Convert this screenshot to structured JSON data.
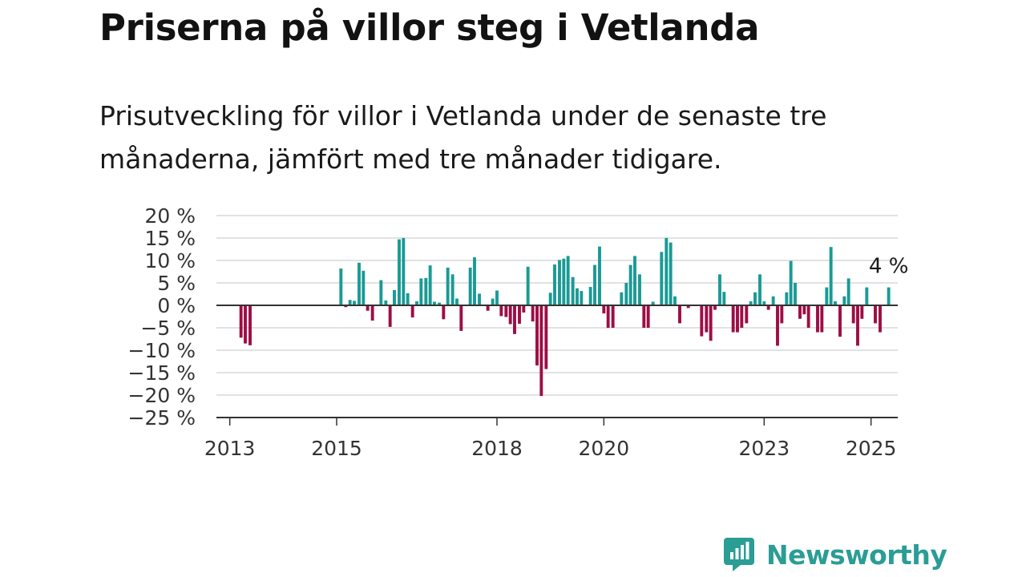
{
  "header": {
    "title": "Priserna på villor steg i Vetlanda",
    "subtitle": "Prisutveckling för villor i Vetlanda under de senaste tre månaderna, jämfört med tre månader tidigare."
  },
  "brand": {
    "name": "Newsworthy",
    "color": "#2a9d95",
    "icon": "newsworthy-logo-icon"
  },
  "chart_data": {
    "type": "bar",
    "title": "",
    "xlabel": "",
    "ylabel": "",
    "ylim": [
      -25,
      20
    ],
    "yticks": [
      20,
      15,
      10,
      5,
      0,
      -5,
      -10,
      -15,
      -20,
      -25
    ],
    "ytick_labels": [
      "20 %",
      "15 %",
      "10 %",
      "5 %",
      "0 %",
      "−5 %",
      "−10 %",
      "−15 %",
      "−20 %",
      "−25 %"
    ],
    "xlim": [
      2012.75,
      2025.5
    ],
    "xticks": [
      {
        "label": "2013",
        "value": 2013.0
      },
      {
        "label": "2015",
        "value": 2015.0
      },
      {
        "label": "2018",
        "value": 2018.0
      },
      {
        "label": "2020",
        "value": 2020.0
      },
      {
        "label": "2023",
        "value": 2023.0
      },
      {
        "label": "2025",
        "value": 2025.0
      }
    ],
    "grid": true,
    "positive_color": "#1a9a95",
    "negative_color": "#9e0d45",
    "annotation": {
      "text": "4 %",
      "x": 2025.33,
      "y": 4
    },
    "values": [
      [
        2013.21,
        -7.2
      ],
      [
        2013.29,
        -8.5
      ],
      [
        2013.38,
        -8.9
      ],
      [
        2015.08,
        8.2
      ],
      [
        2015.17,
        -0.4
      ],
      [
        2015.25,
        1.2
      ],
      [
        2015.33,
        1.0
      ],
      [
        2015.42,
        9.5
      ],
      [
        2015.5,
        7.7
      ],
      [
        2015.58,
        -1.2
      ],
      [
        2015.67,
        -3.4
      ],
      [
        2015.83,
        5.6
      ],
      [
        2015.92,
        1.1
      ],
      [
        2016.0,
        -4.8
      ],
      [
        2016.08,
        3.4
      ],
      [
        2016.17,
        14.7
      ],
      [
        2016.25,
        15.0
      ],
      [
        2016.33,
        2.7
      ],
      [
        2016.42,
        -2.7
      ],
      [
        2016.5,
        0.9
      ],
      [
        2016.58,
        6.0
      ],
      [
        2016.67,
        6.1
      ],
      [
        2016.75,
        8.9
      ],
      [
        2016.83,
        0.8
      ],
      [
        2016.92,
        0.6
      ],
      [
        2017.0,
        -3.1
      ],
      [
        2017.08,
        8.4
      ],
      [
        2017.17,
        6.9
      ],
      [
        2017.25,
        1.5
      ],
      [
        2017.33,
        -5.7
      ],
      [
        2017.5,
        8.4
      ],
      [
        2017.58,
        10.7
      ],
      [
        2017.67,
        2.6
      ],
      [
        2017.83,
        -1.2
      ],
      [
        2017.92,
        1.5
      ],
      [
        2018.0,
        3.3
      ],
      [
        2018.08,
        -2.4
      ],
      [
        2018.17,
        -2.6
      ],
      [
        2018.25,
        -4.2
      ],
      [
        2018.33,
        -6.4
      ],
      [
        2018.42,
        -4.1
      ],
      [
        2018.5,
        -1.6
      ],
      [
        2018.58,
        8.6
      ],
      [
        2018.67,
        -3.6
      ],
      [
        2018.75,
        -13.4
      ],
      [
        2018.83,
        -20.2
      ],
      [
        2018.92,
        -14.2
      ],
      [
        2019.0,
        2.8
      ],
      [
        2019.08,
        9.1
      ],
      [
        2019.17,
        10.1
      ],
      [
        2019.25,
        10.4
      ],
      [
        2019.33,
        11.0
      ],
      [
        2019.42,
        6.3
      ],
      [
        2019.5,
        3.8
      ],
      [
        2019.58,
        3.2
      ],
      [
        2019.75,
        4.1
      ],
      [
        2019.83,
        9.0
      ],
      [
        2019.92,
        13.1
      ],
      [
        2020.0,
        -1.8
      ],
      [
        2020.08,
        -5.0
      ],
      [
        2020.17,
        -5.0
      ],
      [
        2020.33,
        2.9
      ],
      [
        2020.42,
        5.0
      ],
      [
        2020.5,
        9.0
      ],
      [
        2020.58,
        11.0
      ],
      [
        2020.67,
        6.9
      ],
      [
        2020.75,
        -5.0
      ],
      [
        2020.83,
        -5.0
      ],
      [
        2020.92,
        0.8
      ],
      [
        2021.08,
        11.9
      ],
      [
        2021.17,
        15.0
      ],
      [
        2021.25,
        14.0
      ],
      [
        2021.33,
        2.0
      ],
      [
        2021.42,
        -4.0
      ],
      [
        2021.58,
        -0.6
      ],
      [
        2021.83,
        -6.9
      ],
      [
        2021.92,
        -6.0
      ],
      [
        2022.0,
        -7.9
      ],
      [
        2022.08,
        -1.0
      ],
      [
        2022.17,
        6.9
      ],
      [
        2022.25,
        3.0
      ],
      [
        2022.42,
        -6.0
      ],
      [
        2022.5,
        -6.0
      ],
      [
        2022.58,
        -5.0
      ],
      [
        2022.67,
        -4.0
      ],
      [
        2022.75,
        0.9
      ],
      [
        2022.83,
        2.9
      ],
      [
        2022.92,
        6.9
      ],
      [
        2023.0,
        0.9
      ],
      [
        2023.08,
        -1.0
      ],
      [
        2023.17,
        2.0
      ],
      [
        2023.25,
        -9.0
      ],
      [
        2023.33,
        -4.0
      ],
      [
        2023.42,
        2.9
      ],
      [
        2023.5,
        9.9
      ],
      [
        2023.58,
        5.0
      ],
      [
        2023.67,
        -3.0
      ],
      [
        2023.75,
        -2.0
      ],
      [
        2023.83,
        -5.0
      ],
      [
        2024.0,
        -6.0
      ],
      [
        2024.08,
        -6.0
      ],
      [
        2024.17,
        4.0
      ],
      [
        2024.25,
        13.0
      ],
      [
        2024.33,
        0.9
      ],
      [
        2024.42,
        -7.0
      ],
      [
        2024.5,
        2.0
      ],
      [
        2024.58,
        6.0
      ],
      [
        2024.67,
        -4.0
      ],
      [
        2024.75,
        -9.0
      ],
      [
        2024.83,
        -3.0
      ],
      [
        2024.92,
        4.0
      ],
      [
        2025.08,
        -4.0
      ],
      [
        2025.17,
        -6.0
      ],
      [
        2025.33,
        4.0
      ]
    ]
  }
}
